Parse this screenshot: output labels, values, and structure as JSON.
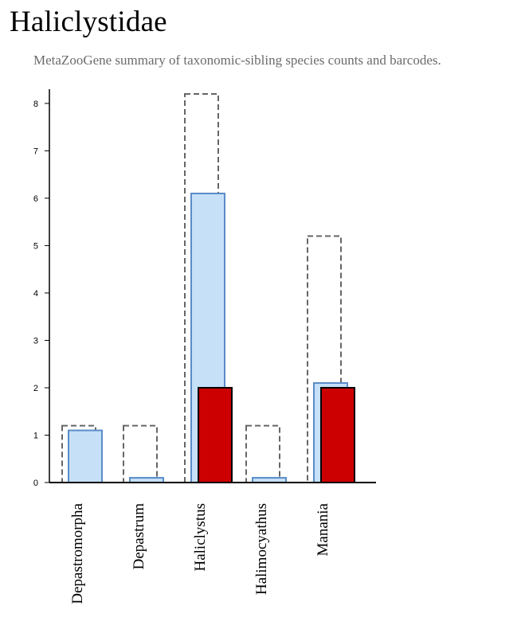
{
  "page": {
    "title": "Haliclystidae",
    "subtitle": "MetaZooGene summary of taxonomic-sibling species counts and barcodes."
  },
  "colors": {
    "dashed_outline": "#666666",
    "blue_fill": "#c6e0f8",
    "blue_stroke": "#5a8cc8",
    "red_fill": "#cc0000",
    "red_stroke": "#000000"
  },
  "chart_data": {
    "type": "bar",
    "title": "",
    "xlabel": "",
    "ylabel": "",
    "ylim": [
      0,
      8.3
    ],
    "yticks": [
      0,
      1,
      2,
      3,
      4,
      5,
      6,
      7,
      8
    ],
    "grid": false,
    "legend": "none",
    "categories": [
      "Depastromorpha",
      "Depastrum",
      "Haliclystus",
      "Halimocyathus",
      "Manania"
    ],
    "series": [
      {
        "style": "dashed-outline",
        "values": [
          1.2,
          1.2,
          8.2,
          1.2,
          5.2
        ]
      },
      {
        "style": "blue",
        "values": [
          1.1,
          0.1,
          6.1,
          0.1,
          2.1
        ]
      },
      {
        "style": "red",
        "values": [
          0,
          0,
          2,
          0,
          2
        ]
      }
    ]
  }
}
